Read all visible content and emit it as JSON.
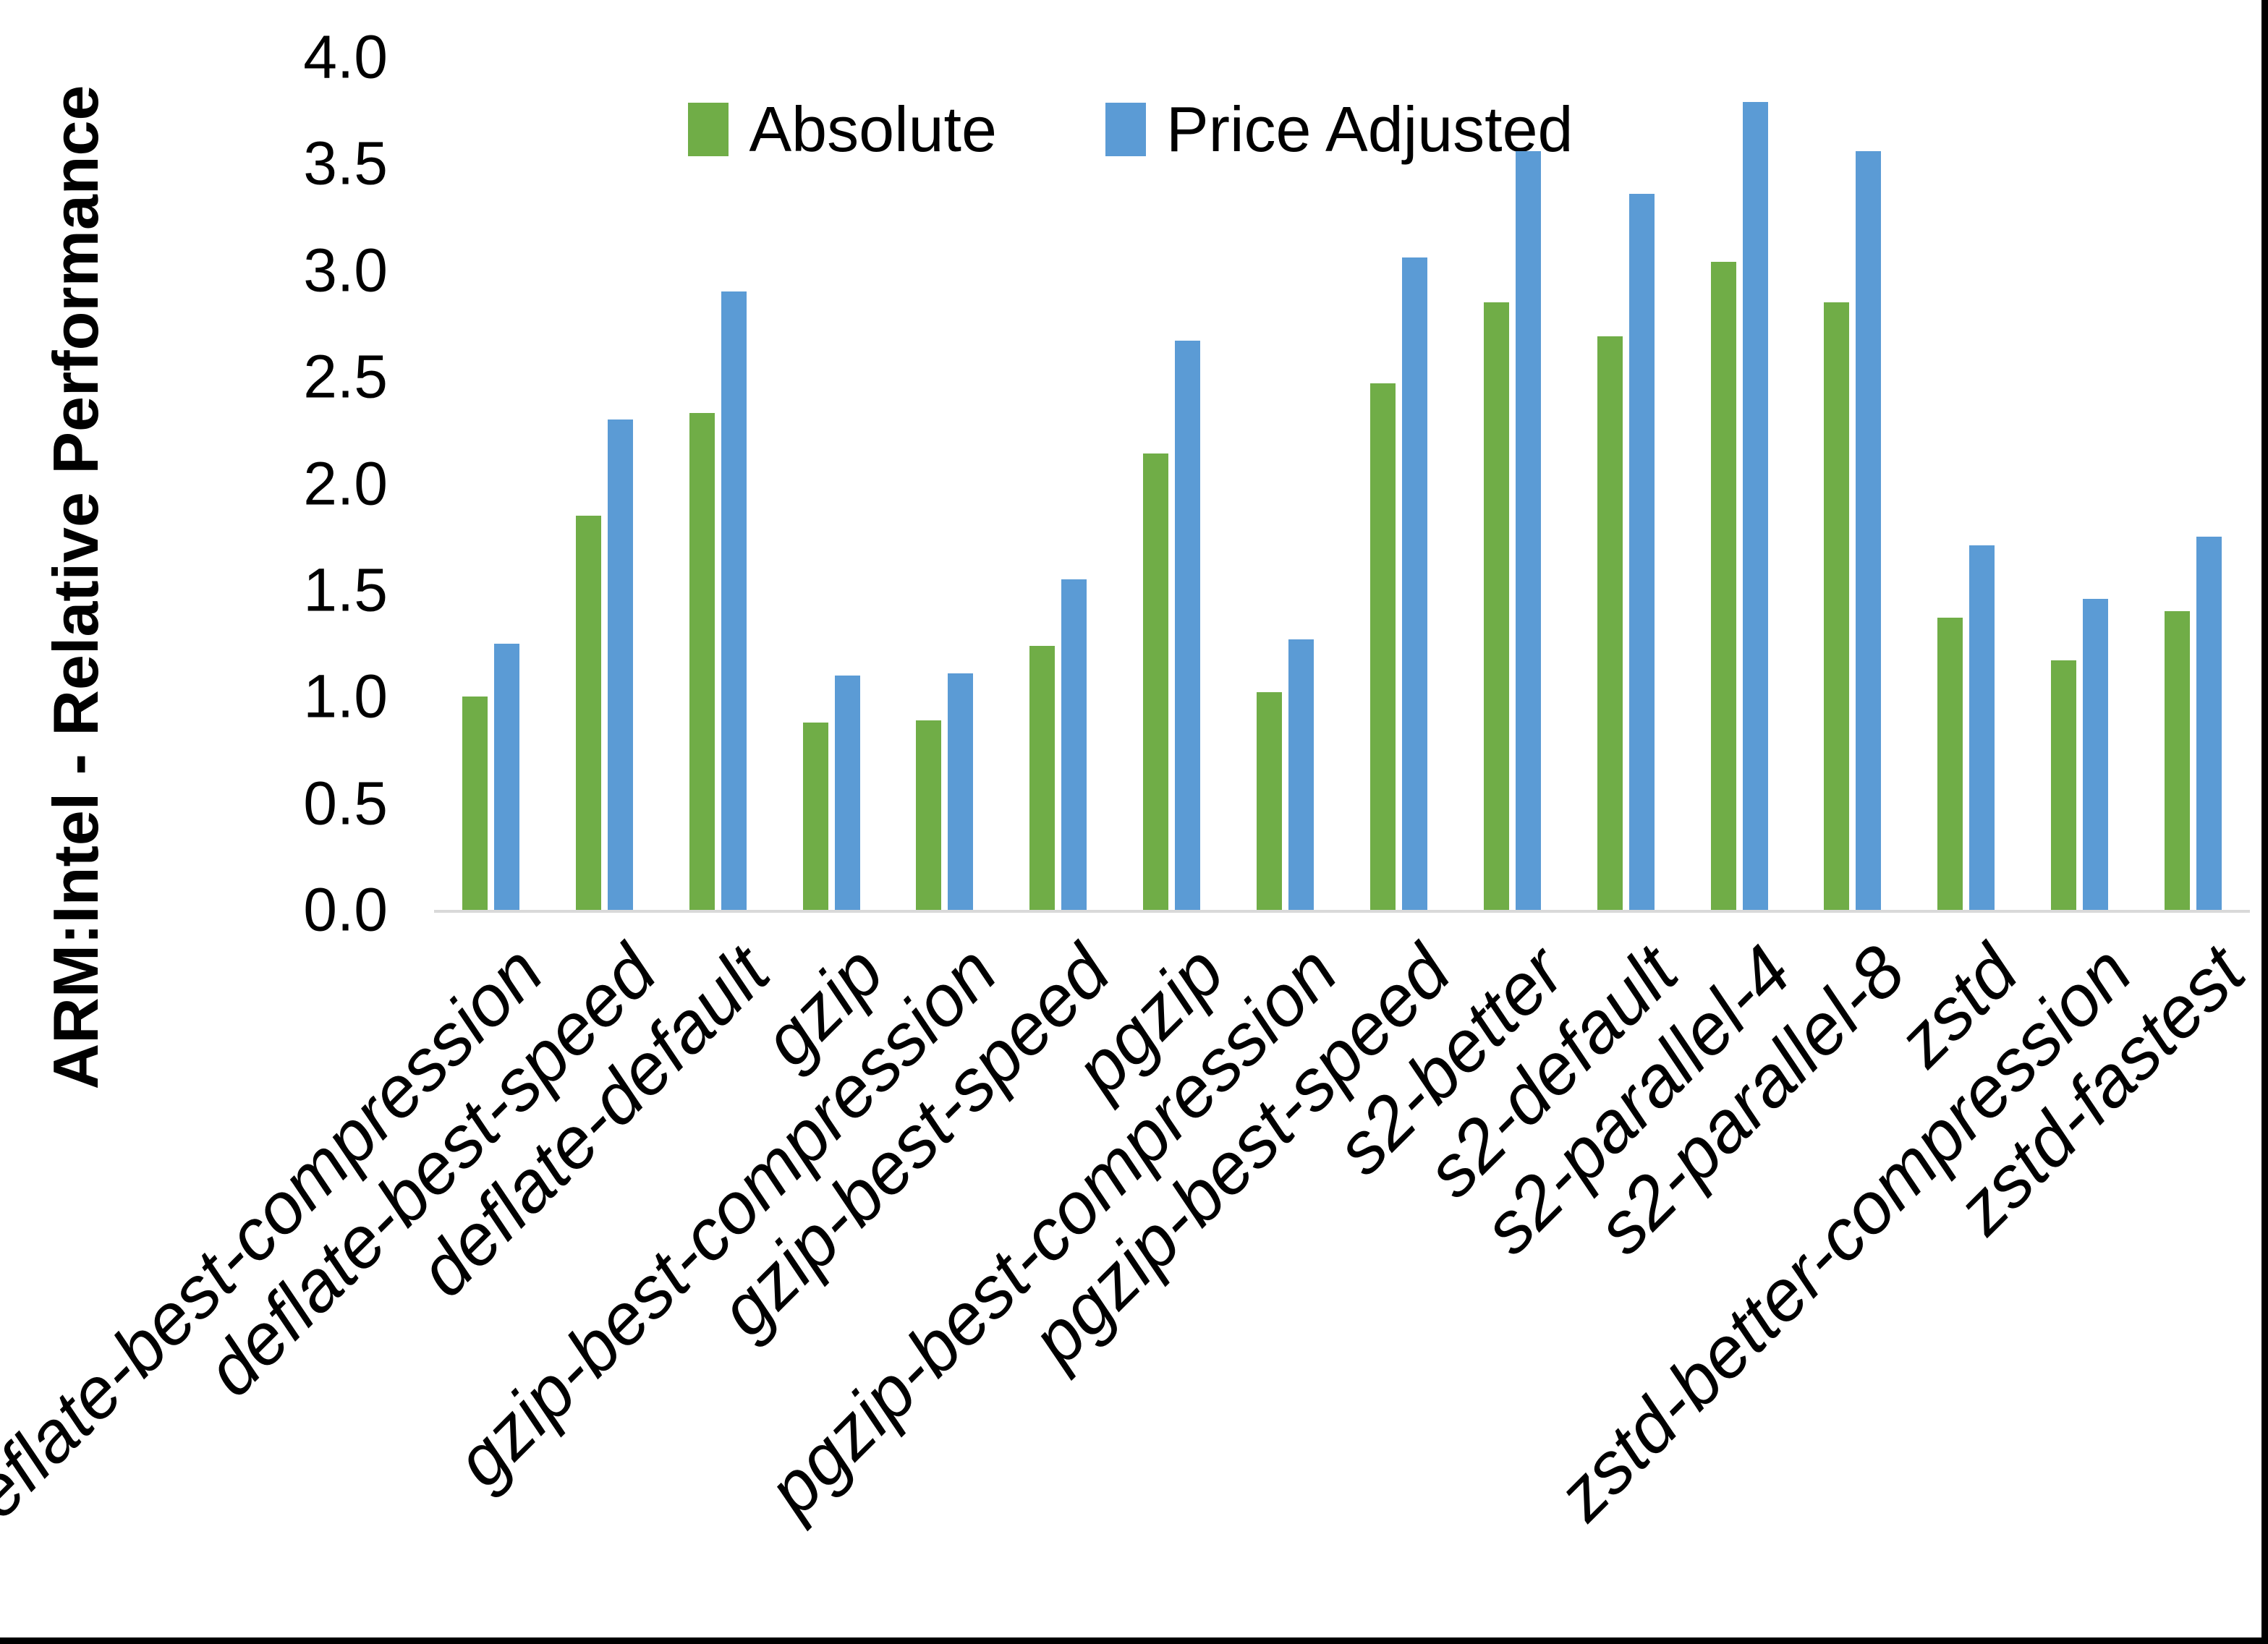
{
  "chart_data": {
    "type": "bar",
    "title": "",
    "xlabel": "",
    "ylabel": "ARM:Intel - Relative Performance",
    "ylim": [
      0,
      4
    ],
    "ytick_step": 0.5,
    "ytick_decimals": 1,
    "grid": false,
    "legend_position": "top-center",
    "categories": [
      "deflate-best-compression",
      "deflate-best-speed",
      "deflate-default",
      "gzip",
      "gzip-best-compression",
      "gzip-best-speed",
      "pgzip",
      "pgzip-best-compression",
      "pgzip-best-speed",
      "s2-better",
      "s2-default",
      "s2-parallel-4",
      "s2-parallel-8",
      "zstd",
      "zstd-better-compression",
      "zstd-fastest"
    ],
    "series": [
      {
        "name": "Absolute",
        "color": "#70AD47",
        "values": [
          1.0,
          1.85,
          2.33,
          0.88,
          0.89,
          1.24,
          2.14,
          1.02,
          2.47,
          2.85,
          2.69,
          3.04,
          2.85,
          1.37,
          1.17,
          1.4
        ]
      },
      {
        "name": "Price Adjusted",
        "color": "#5B9BD5",
        "values": [
          1.25,
          2.3,
          2.9,
          1.1,
          1.11,
          1.55,
          2.67,
          1.27,
          3.06,
          3.56,
          3.36,
          3.79,
          3.56,
          1.71,
          1.46,
          1.75
        ]
      }
    ],
    "axis_line_color": "#D9D9D9",
    "text_color": "#000000",
    "background_color": "#FFFFFF",
    "frame_border_color": "#000000"
  }
}
